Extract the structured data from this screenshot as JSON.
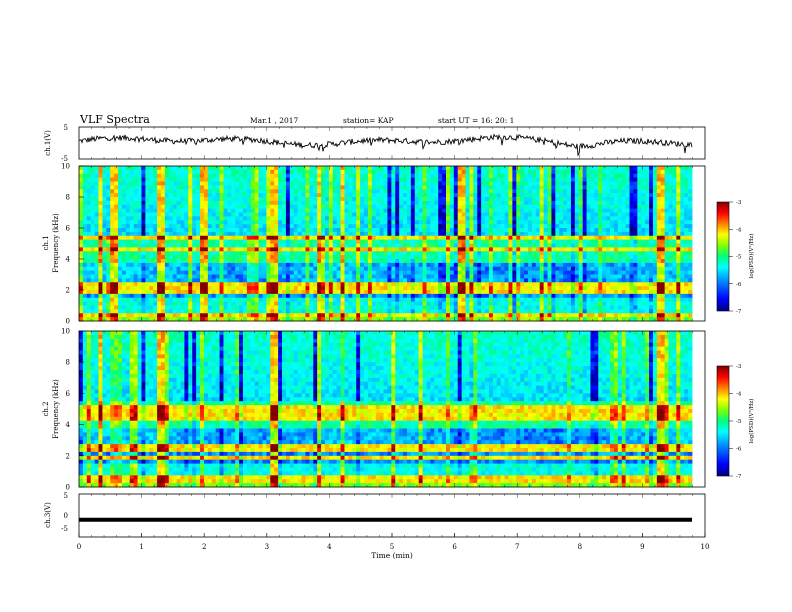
{
  "header": {
    "title": "VLF Spectra",
    "date": "Mar.1  , 2017",
    "station": "station= KAP",
    "start": "start  UT =   16: 20: 1"
  },
  "chart_data": [
    {
      "type": "line",
      "panel": "ch1-waveform",
      "ylabel": "ch.1(V)",
      "ylim": [
        -5,
        5
      ],
      "yticks": [
        "5",
        "-5"
      ],
      "xlim": [
        0,
        10
      ],
      "trace_color": "#000000"
    },
    {
      "type": "heatmap",
      "panel": "ch1-spectrogram",
      "label_top": "ch.1",
      "ylabel": "Frequency (kHz)",
      "ylim": [
        0,
        10
      ],
      "yticks": [
        "0",
        "2",
        "4",
        "6",
        "8",
        "10"
      ],
      "xlim": [
        0,
        10
      ],
      "colorbar": {
        "label": "log(PSD)(V²/Hz)",
        "ticks": [
          "-3",
          "-4",
          "-5",
          "-6",
          "-7"
        ],
        "range": [
          -7,
          -3
        ]
      },
      "features": {
        "quiet_band_center_min": 7,
        "bright_vertical_lines_min": [
          0.35,
          0.55,
          1.3,
          2.0,
          3.1,
          3.85,
          4.2,
          6.1,
          9.3
        ],
        "horizontal_lines_khz": [
          0.4,
          2.0,
          2.35,
          4.6,
          5.4
        ]
      }
    },
    {
      "type": "heatmap",
      "panel": "ch2-spectrogram",
      "label_top": "ch.2",
      "ylabel": "Frequency (kHz)",
      "ylim": [
        0,
        10
      ],
      "yticks": [
        "0",
        "2",
        "4",
        "6",
        "8",
        "10"
      ],
      "xlim": [
        0,
        10
      ],
      "colorbar": {
        "label": "log(PSD)(V²/Hz)",
        "ticks": [
          "-3",
          "-4",
          "-5",
          "-6",
          "-7"
        ],
        "range": [
          -7,
          -3
        ]
      },
      "features": {
        "bright_vertical_lines_min": [
          0.35,
          1.3,
          3.1,
          4.2,
          9.3
        ],
        "horizontal_lines_khz": [
          0.5,
          1.9,
          2.5,
          4.5,
          5.0
        ]
      }
    },
    {
      "type": "line",
      "panel": "ch3-waveform",
      "ylabel": "ch.3(V)",
      "ylim": [
        -5,
        5
      ],
      "yticks": [
        "5",
        "0",
        "-5"
      ],
      "xlim": [
        0,
        10
      ],
      "constant_value": -1,
      "trace_color": "#000000"
    }
  ],
  "xaxis": {
    "label": "Time  (min)",
    "ticks": [
      "0",
      "1",
      "2",
      "3",
      "4",
      "5",
      "6",
      "7",
      "8",
      "9",
      "10"
    ]
  },
  "colors": {
    "colormap": [
      "#00007f",
      "#0000ff",
      "#00a0ff",
      "#00ffff",
      "#00ff80",
      "#80ff00",
      "#ffff00",
      "#ff8000",
      "#ff0000",
      "#7f0000"
    ]
  }
}
